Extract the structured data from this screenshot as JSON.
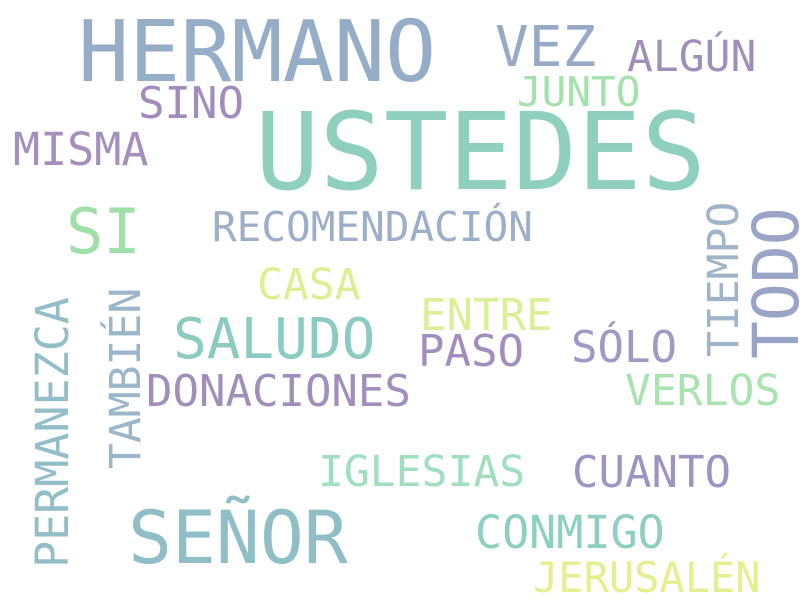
{
  "words": {
    "hermano": {
      "text": "HERMANO",
      "color": "#96adc7"
    },
    "ustedes": {
      "text": "USTEDES",
      "color": "#8ed0bd"
    },
    "vez": {
      "text": "VEZ",
      "color": "#98a9c7"
    },
    "algun": {
      "text": "ALGÚN",
      "color": "#a08fbb"
    },
    "junto": {
      "text": "JUNTO",
      "color": "#a4e1ad"
    },
    "sino": {
      "text": "SINO",
      "color": "#a18dbb"
    },
    "misma": {
      "text": "MISMA",
      "color": "#a58fbd"
    },
    "si": {
      "text": "SI",
      "color": "#a0e0a8"
    },
    "recomendacion": {
      "text": "RECOMENDACIÓN",
      "color": "#9caec8"
    },
    "tiempo": {
      "text": "TIEMPO",
      "color": "#9fb4c9"
    },
    "todo": {
      "text": "TODO",
      "color": "#9aa4c6"
    },
    "casa": {
      "text": "CASA",
      "color": "#dfee93"
    },
    "permanezca": {
      "text": "PERMANEZCA",
      "color": "#92bec7"
    },
    "tambien": {
      "text": "TAMBIÉN",
      "color": "#9bb5c9"
    },
    "saludo": {
      "text": "SALUDO",
      "color": "#8ccbc2"
    },
    "entre": {
      "text": "ENTRE",
      "color": "#dbef98"
    },
    "paso": {
      "text": "PASO",
      "color": "#a28ebc"
    },
    "solo": {
      "text": "SÓLO",
      "color": "#a198c3"
    },
    "donaciones": {
      "text": "DONACIONES",
      "color": "#a18ebb"
    },
    "verlos": {
      "text": "VERLOS",
      "color": "#a8e3b0"
    },
    "iglesias": {
      "text": "IGLESIAS",
      "color": "#9fdfbf"
    },
    "cuanto": {
      "text": "CUANTO",
      "color": "#9f94c1"
    },
    "senor": {
      "text": "SEÑOR",
      "color": "#8fbec6"
    },
    "conmigo": {
      "text": "CONMIGO",
      "color": "#8dcfc0"
    },
    "jerusalen": {
      "text": "JERUSALÉN",
      "color": "#e6ef8f"
    }
  }
}
